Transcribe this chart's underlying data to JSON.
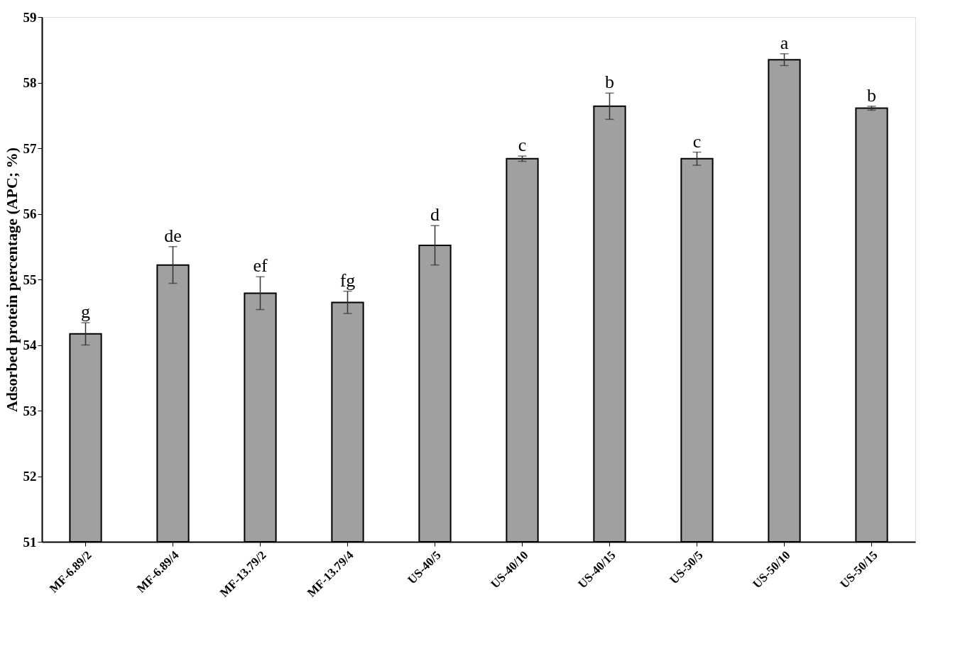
{
  "chart_data": {
    "type": "bar",
    "ylabel": "Adsorbed protein percentage (APC; %)",
    "categories": [
      "MF-6.89/2",
      "MF-6.89/4",
      "MF-13.79/2",
      "MF-13.79/4",
      "US-40/5",
      "US-40/10",
      "US-40/15",
      "US-50/5",
      "US-50/10",
      "US-50/15"
    ],
    "values": [
      54.17,
      55.22,
      54.79,
      54.65,
      55.52,
      56.84,
      57.64,
      56.84,
      58.35,
      57.61
    ],
    "errors": [
      0.17,
      0.28,
      0.25,
      0.17,
      0.3,
      0.04,
      0.2,
      0.1,
      0.09,
      0.03
    ],
    "color": "#a0a0a0",
    "ylim": [
      51,
      59
    ],
    "yticks": [
      51,
      52,
      53,
      54,
      55,
      56,
      57,
      58,
      59
    ],
    "grid": false,
    "annotations": [
      {
        "text": "g",
        "x": "MF-6.89/2",
        "y": 54.34
      },
      {
        "text": "de",
        "x": "MF-6.89/4",
        "y": 55.5
      },
      {
        "text": "ef",
        "x": "MF-13.79/2",
        "y": 55.04
      },
      {
        "text": "fg",
        "x": "MF-13.79/4",
        "y": 54.82
      },
      {
        "text": "d",
        "x": "US-40/5",
        "y": 55.82
      },
      {
        "text": "c",
        "x": "US-40/10",
        "y": 56.88
      },
      {
        "text": "b",
        "x": "US-40/15",
        "y": 57.84
      },
      {
        "text": "c",
        "x": "US-50/5",
        "y": 56.94
      },
      {
        "text": "a",
        "x": "US-50/10",
        "y": 58.44
      },
      {
        "text": "b",
        "x": "US-50/15",
        "y": 57.64
      }
    ]
  }
}
